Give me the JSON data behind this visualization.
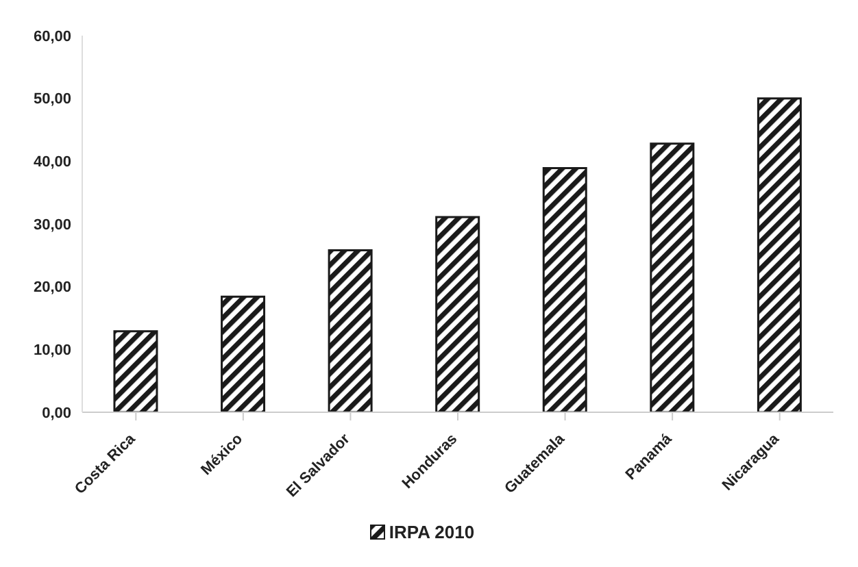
{
  "chart_data": {
    "type": "bar",
    "categories": [
      "Costa Rica",
      "México",
      "El Salvador",
      "Honduras",
      "Guatemala",
      "Panamá",
      "Nicaragua"
    ],
    "series": [
      {
        "name": "IRPA 2010",
        "color": "#1a1a1a",
        "values": [
          12.9,
          18.4,
          25.8,
          31.1,
          38.9,
          42.8,
          50.0
        ]
      }
    ],
    "ylim": [
      0,
      60
    ],
    "yticks": [
      {
        "value": 0,
        "label": "0,00"
      },
      {
        "value": 10,
        "label": "10,00"
      },
      {
        "value": 20,
        "label": "20,00"
      },
      {
        "value": 30,
        "label": "30,00"
      },
      {
        "value": 40,
        "label": "40,00"
      },
      {
        "value": 50,
        "label": "50,00"
      },
      {
        "value": 60,
        "label": "60,00"
      }
    ],
    "grid": false,
    "legend": "bottom"
  }
}
